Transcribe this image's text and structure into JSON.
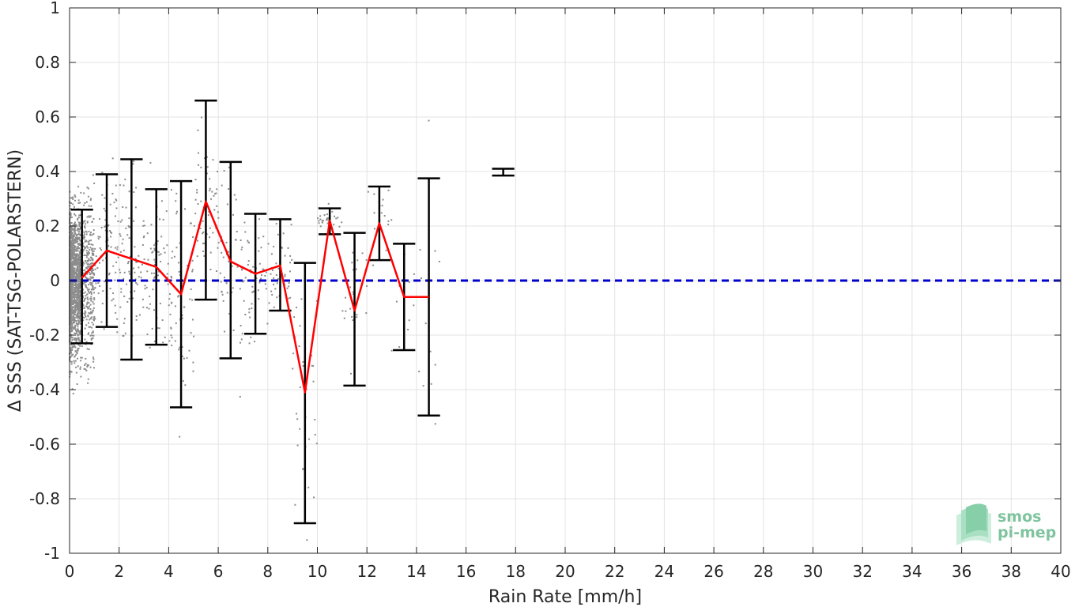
{
  "chart_data": {
    "type": "scatter",
    "xlabel": "Rain Rate [mm/h]",
    "ylabel": "Δ SSS (SAT-TSG-POLARSTERN)",
    "xlim": [
      0,
      40
    ],
    "ylim": [
      -1,
      1
    ],
    "x_ticks": [
      0,
      2,
      4,
      6,
      8,
      10,
      12,
      14,
      16,
      18,
      20,
      22,
      24,
      26,
      28,
      30,
      32,
      34,
      36,
      38,
      40
    ],
    "y_ticks": [
      -1,
      -0.8,
      -0.6,
      -0.4,
      -0.2,
      0,
      0.2,
      0.4,
      0.6,
      0.8,
      1
    ],
    "y_tick_labels": [
      "-1",
      "-0.8",
      "-0.6",
      "-0.4",
      "-0.2",
      "0",
      "0.2",
      "0.4",
      "0.6",
      "0.8",
      "1"
    ],
    "grid": true,
    "colors": {
      "scatter": "#8c8c8c",
      "mean_line": "#ff0000",
      "errorbar": "#000000",
      "zero_line": "#0000cc",
      "grid": "#e3e3e3"
    },
    "series": [
      {
        "type": "line",
        "x": [
          0.5,
          1.5,
          2.5,
          3.5,
          4.5,
          5.5,
          6.5,
          7.5,
          8.5,
          9.5,
          10.5,
          11.5,
          12.5,
          13.5,
          14.5
        ],
        "values": [
          0.01,
          0.11,
          0.08,
          0.05,
          -0.05,
          0.29,
          0.07,
          0.025,
          0.055,
          -0.41,
          0.22,
          -0.11,
          0.21,
          -0.06,
          -0.06
        ]
      },
      {
        "type": "errorbar",
        "x": [
          0.5,
          1.5,
          2.5,
          3.5,
          4.5,
          5.5,
          6.5,
          7.5,
          8.5,
          9.5,
          10.5,
          11.5,
          12.5,
          13.5,
          14.5,
          17.5
        ],
        "lower": [
          -0.23,
          -0.17,
          -0.29,
          -0.235,
          -0.465,
          -0.07,
          -0.285,
          -0.195,
          -0.11,
          -0.89,
          0.17,
          -0.385,
          0.075,
          -0.255,
          -0.495,
          0.385
        ],
        "upper": [
          0.26,
          0.39,
          0.445,
          0.335,
          0.365,
          0.66,
          0.435,
          0.245,
          0.225,
          0.065,
          0.265,
          0.175,
          0.345,
          0.135,
          0.375,
          0.41
        ]
      },
      {
        "type": "hline",
        "values": [
          0
        ]
      }
    ]
  },
  "logo": {
    "line1": "smos",
    "line2": "pi-mep"
  }
}
